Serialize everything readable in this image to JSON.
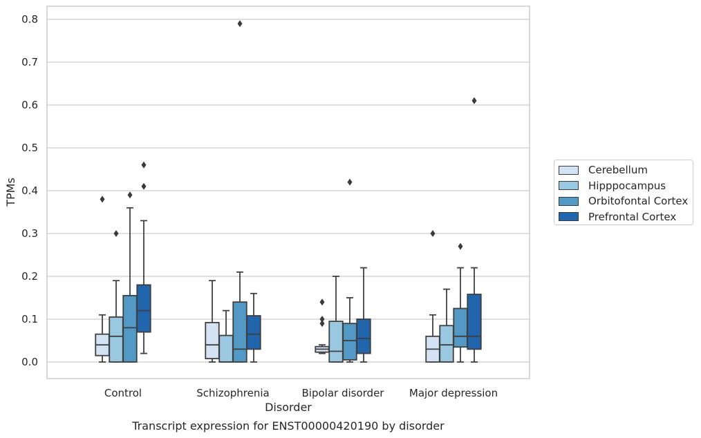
{
  "chart_data": {
    "type": "box",
    "title": "Transcript expression for ENST00000420190 by disorder",
    "xlabel": "Disorder",
    "ylabel": "TPMs",
    "ylim": [
      -0.04,
      0.83
    ],
    "yticks": [
      "0.0",
      "0.1",
      "0.2",
      "0.3",
      "0.4",
      "0.5",
      "0.6",
      "0.7",
      "0.8"
    ],
    "grid": "horizontal",
    "legend_position": "right",
    "categories": [
      "Control",
      "Schizophrenia",
      "Bipolar disorder",
      "Major depression"
    ],
    "series": [
      {
        "name": "Cerebellum",
        "color": "#d3e3f3",
        "boxes": [
          {
            "whisker_low": 0.0,
            "q1": 0.015,
            "median": 0.04,
            "q3": 0.065,
            "whisker_high": 0.11,
            "outliers": [
              0.38
            ]
          },
          {
            "whisker_low": 0.0,
            "q1": 0.008,
            "median": 0.04,
            "q3": 0.092,
            "whisker_high": 0.19,
            "outliers": []
          },
          {
            "whisker_low": 0.02,
            "q1": 0.023,
            "median": 0.03,
            "q3": 0.036,
            "whisker_high": 0.04,
            "outliers": [
              0.14,
              0.1,
              0.09
            ]
          },
          {
            "whisker_low": 0.0,
            "q1": 0.0,
            "median": 0.03,
            "q3": 0.06,
            "whisker_high": 0.11,
            "outliers": [
              0.3
            ]
          }
        ]
      },
      {
        "name": "Hipppocampus",
        "color": "#9ac8e0",
        "boxes": [
          {
            "whisker_low": 0.0,
            "q1": 0.0,
            "median": 0.06,
            "q3": 0.105,
            "whisker_high": 0.19,
            "outliers": [
              0.3
            ]
          },
          {
            "whisker_low": 0.0,
            "q1": 0.0,
            "median": 0.0,
            "q3": 0.062,
            "whisker_high": 0.12,
            "outliers": []
          },
          {
            "whisker_low": 0.0,
            "q1": 0.0,
            "median": 0.025,
            "q3": 0.095,
            "whisker_high": 0.2,
            "outliers": []
          },
          {
            "whisker_low": 0.0,
            "q1": 0.0,
            "median": 0.04,
            "q3": 0.085,
            "whisker_high": 0.17,
            "outliers": []
          }
        ]
      },
      {
        "name": "Orbitofontal Cortex",
        "color": "#5399c6",
        "boxes": [
          {
            "whisker_low": 0.0,
            "q1": 0.0,
            "median": 0.08,
            "q3": 0.155,
            "whisker_high": 0.36,
            "outliers": [
              0.39
            ]
          },
          {
            "whisker_low": 0.0,
            "q1": 0.0,
            "median": 0.03,
            "q3": 0.14,
            "whisker_high": 0.21,
            "outliers": [
              0.79
            ]
          },
          {
            "whisker_low": 0.0,
            "q1": 0.005,
            "median": 0.05,
            "q3": 0.09,
            "whisker_high": 0.15,
            "outliers": [
              0.42
            ]
          },
          {
            "whisker_low": 0.0,
            "q1": 0.035,
            "median": 0.06,
            "q3": 0.125,
            "whisker_high": 0.22,
            "outliers": [
              0.27
            ]
          }
        ]
      },
      {
        "name": "Prefrontal Cortex",
        "color": "#2166ac",
        "boxes": [
          {
            "whisker_low": 0.02,
            "q1": 0.07,
            "median": 0.12,
            "q3": 0.18,
            "whisker_high": 0.33,
            "outliers": [
              0.41,
              0.46
            ]
          },
          {
            "whisker_low": 0.0,
            "q1": 0.03,
            "median": 0.065,
            "q3": 0.108,
            "whisker_high": 0.16,
            "outliers": []
          },
          {
            "whisker_low": 0.0,
            "q1": 0.02,
            "median": 0.055,
            "q3": 0.1,
            "whisker_high": 0.22,
            "outliers": []
          },
          {
            "whisker_low": 0.0,
            "q1": 0.03,
            "median": 0.06,
            "q3": 0.158,
            "whisker_high": 0.22,
            "outliers": [
              0.61
            ]
          }
        ]
      }
    ]
  }
}
